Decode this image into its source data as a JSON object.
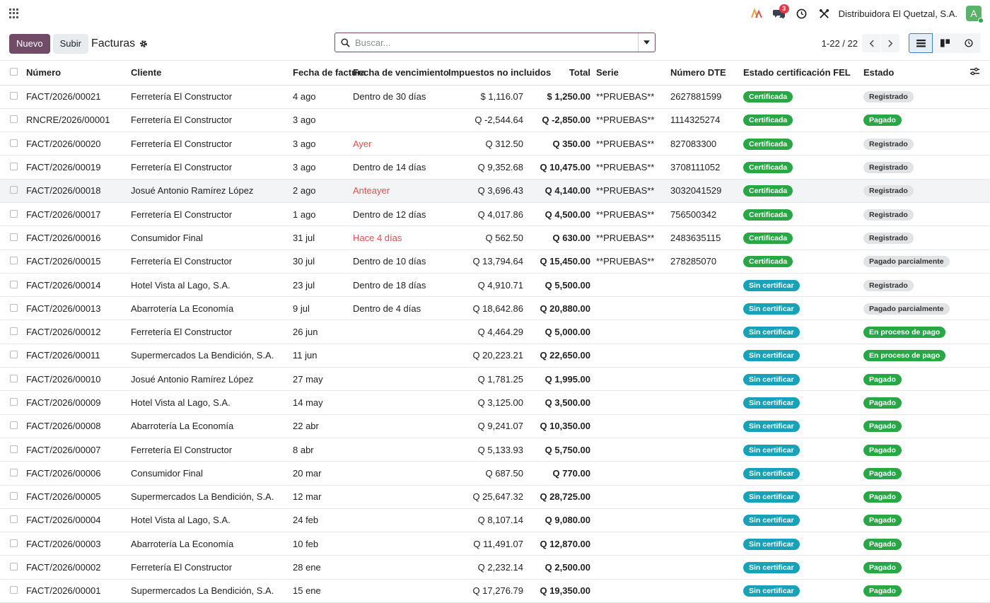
{
  "topbar": {
    "company": "Distribuidora El Quetzal, S.A.",
    "messages_badge": "3",
    "avatar_letter": "A"
  },
  "control": {
    "new_label": "Nuevo",
    "upload_label": "Subir",
    "title": "Facturas",
    "search_placeholder": "Buscar...",
    "pager": "1-22 / 22"
  },
  "columns": [
    "Número",
    "Cliente",
    "Fecha de factura",
    "Fecha de vencimiento",
    "Impuestos no incluidos",
    "Total",
    "Serie",
    "Número DTE",
    "Estado certificación FEL",
    "Estado"
  ],
  "rows": [
    {
      "num": "FACT/2026/00021",
      "cliente": "Ferretería El Constructor",
      "fecha": "4 ago",
      "venc": "Dentro de 30 días",
      "venc_red": false,
      "imp": "$ 1,116.07",
      "total": "$ 1,250.00",
      "serie": "**PRUEBAS**",
      "dte": "2627881599",
      "fel": "Certificada",
      "estado": "Registrado"
    },
    {
      "num": "RNCRE/2026/00001",
      "cliente": "Ferretería El Constructor",
      "fecha": "3 ago",
      "venc": "",
      "venc_red": false,
      "imp": "Q -2,544.64",
      "total": "Q -2,850.00",
      "serie": "**PRUEBAS**",
      "dte": "1114325274",
      "fel": "Certificada",
      "estado": "Pagado"
    },
    {
      "num": "FACT/2026/00020",
      "cliente": "Ferretería El Constructor",
      "fecha": "3 ago",
      "venc": "Ayer",
      "venc_red": true,
      "imp": "Q 312.50",
      "total": "Q 350.00",
      "serie": "**PRUEBAS**",
      "dte": "827083300",
      "fel": "Certificada",
      "estado": "Registrado"
    },
    {
      "num": "FACT/2026/00019",
      "cliente": "Ferretería El Constructor",
      "fecha": "3 ago",
      "venc": "Dentro de 14 días",
      "venc_red": false,
      "imp": "Q 9,352.68",
      "total": "Q 10,475.00",
      "serie": "**PRUEBAS**",
      "dte": "3708111052",
      "fel": "Certificada",
      "estado": "Registrado"
    },
    {
      "num": "FACT/2026/00018",
      "cliente": "Josué Antonio Ramírez López",
      "fecha": "2 ago",
      "venc": "Anteayer",
      "venc_red": true,
      "imp": "Q 3,696.43",
      "total": "Q 4,140.00",
      "serie": "**PRUEBAS**",
      "dte": "3032041529",
      "fel": "Certificada",
      "estado": "Registrado"
    },
    {
      "num": "FACT/2026/00017",
      "cliente": "Ferretería El Constructor",
      "fecha": "1 ago",
      "venc": "Dentro de 12 días",
      "venc_red": false,
      "imp": "Q 4,017.86",
      "total": "Q 4,500.00",
      "serie": "**PRUEBAS**",
      "dte": "756500342",
      "fel": "Certificada",
      "estado": "Registrado"
    },
    {
      "num": "FACT/2026/00016",
      "cliente": "Consumidor Final",
      "fecha": "31 jul",
      "venc": "Hace 4 días",
      "venc_red": true,
      "imp": "Q 562.50",
      "total": "Q 630.00",
      "serie": "**PRUEBAS**",
      "dte": "2483635115",
      "fel": "Certificada",
      "estado": "Registrado"
    },
    {
      "num": "FACT/2026/00015",
      "cliente": "Ferretería El Constructor",
      "fecha": "30 jul",
      "venc": "Dentro de 10 días",
      "venc_red": false,
      "imp": "Q 13,794.64",
      "total": "Q 15,450.00",
      "serie": "**PRUEBAS**",
      "dte": "278285070",
      "fel": "Certificada",
      "estado": "Pagado parcialmente"
    },
    {
      "num": "FACT/2026/00014",
      "cliente": "Hotel Vista al Lago, S.A.",
      "fecha": "23 jul",
      "venc": "Dentro de 18 días",
      "venc_red": false,
      "imp": "Q 4,910.71",
      "total": "Q 5,500.00",
      "serie": "",
      "dte": "",
      "fel": "Sin certificar",
      "estado": "Registrado"
    },
    {
      "num": "FACT/2026/00013",
      "cliente": "Abarrotería La Economía",
      "fecha": "9 jul",
      "venc": "Dentro de 4 días",
      "venc_red": false,
      "imp": "Q 18,642.86",
      "total": "Q 20,880.00",
      "serie": "",
      "dte": "",
      "fel": "Sin certificar",
      "estado": "Pagado parcialmente"
    },
    {
      "num": "FACT/2026/00012",
      "cliente": "Ferretería El Constructor",
      "fecha": "26 jun",
      "venc": "",
      "venc_red": false,
      "imp": "Q 4,464.29",
      "total": "Q 5,000.00",
      "serie": "",
      "dte": "",
      "fel": "Sin certificar",
      "estado": "En proceso de pago"
    },
    {
      "num": "FACT/2026/00011",
      "cliente": "Supermercados La Bendición, S.A.",
      "fecha": "11 jun",
      "venc": "",
      "venc_red": false,
      "imp": "Q 20,223.21",
      "total": "Q 22,650.00",
      "serie": "",
      "dte": "",
      "fel": "Sin certificar",
      "estado": "En proceso de pago"
    },
    {
      "num": "FACT/2026/00010",
      "cliente": "Josué Antonio Ramírez López",
      "fecha": "27 may",
      "venc": "",
      "venc_red": false,
      "imp": "Q 1,781.25",
      "total": "Q 1,995.00",
      "serie": "",
      "dte": "",
      "fel": "Sin certificar",
      "estado": "Pagado"
    },
    {
      "num": "FACT/2026/00009",
      "cliente": "Hotel Vista al Lago, S.A.",
      "fecha": "14 may",
      "venc": "",
      "venc_red": false,
      "imp": "Q 3,125.00",
      "total": "Q 3,500.00",
      "serie": "",
      "dte": "",
      "fel": "Sin certificar",
      "estado": "Pagado"
    },
    {
      "num": "FACT/2026/00008",
      "cliente": "Abarrotería La Economía",
      "fecha": "22 abr",
      "venc": "",
      "venc_red": false,
      "imp": "Q 9,241.07",
      "total": "Q 10,350.00",
      "serie": "",
      "dte": "",
      "fel": "Sin certificar",
      "estado": "Pagado"
    },
    {
      "num": "FACT/2026/00007",
      "cliente": "Ferretería El Constructor",
      "fecha": "8 abr",
      "venc": "",
      "venc_red": false,
      "imp": "Q 5,133.93",
      "total": "Q 5,750.00",
      "serie": "",
      "dte": "",
      "fel": "Sin certificar",
      "estado": "Pagado"
    },
    {
      "num": "FACT/2026/00006",
      "cliente": "Consumidor Final",
      "fecha": "20 mar",
      "venc": "",
      "venc_red": false,
      "imp": "Q 687.50",
      "total": "Q 770.00",
      "serie": "",
      "dte": "",
      "fel": "Sin certificar",
      "estado": "Pagado"
    },
    {
      "num": "FACT/2026/00005",
      "cliente": "Supermercados La Bendición, S.A.",
      "fecha": "12 mar",
      "venc": "",
      "venc_red": false,
      "imp": "Q 25,647.32",
      "total": "Q 28,725.00",
      "serie": "",
      "dte": "",
      "fel": "Sin certificar",
      "estado": "Pagado"
    },
    {
      "num": "FACT/2026/00004",
      "cliente": "Hotel Vista al Lago, S.A.",
      "fecha": "24 feb",
      "venc": "",
      "venc_red": false,
      "imp": "Q 8,107.14",
      "total": "Q 9,080.00",
      "serie": "",
      "dte": "",
      "fel": "Sin certificar",
      "estado": "Pagado"
    },
    {
      "num": "FACT/2026/00003",
      "cliente": "Abarrotería La Economía",
      "fecha": "10 feb",
      "venc": "",
      "venc_red": false,
      "imp": "Q 11,491.07",
      "total": "Q 12,870.00",
      "serie": "",
      "dte": "",
      "fel": "Sin certificar",
      "estado": "Pagado"
    },
    {
      "num": "FACT/2026/00002",
      "cliente": "Ferretería El Constructor",
      "fecha": "28 ene",
      "venc": "",
      "venc_red": false,
      "imp": "Q 2,232.14",
      "total": "Q 2,500.00",
      "serie": "",
      "dte": "",
      "fel": "Sin certificar",
      "estado": "Pagado"
    },
    {
      "num": "FACT/2026/00001",
      "cliente": "Supermercados La Bendición, S.A.",
      "fecha": "15 ene",
      "venc": "",
      "venc_red": false,
      "imp": "Q 17,276.79",
      "total": "Q 19,350.00",
      "serie": "",
      "dte": "",
      "fel": "Sin certificar",
      "estado": "Pagado"
    }
  ],
  "highlight_row": 4,
  "colors": {
    "primary": "#714b67",
    "certified": "#28a745",
    "uncertified": "#17a2b8",
    "overdue": "#d9534f"
  },
  "icons": [
    "apps-icon",
    "ai-icon",
    "chat-icon",
    "clock-icon",
    "tools-icon",
    "gear-icon",
    "search-icon",
    "caret-down-icon",
    "chevron-left-icon",
    "chevron-right-icon",
    "list-view-icon",
    "kanban-view-icon",
    "activity-view-icon",
    "column-settings-icon"
  ]
}
